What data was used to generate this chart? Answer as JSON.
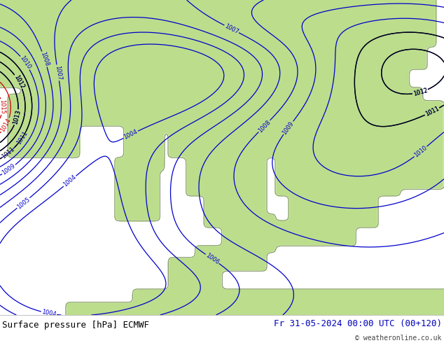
{
  "title_left": "Surface pressure [hPa] ECMWF",
  "title_right": "Fr 31-05-2024 00:00 UTC (00+120)",
  "copyright": "© weatheronline.co.uk",
  "background_color": "#ffffff",
  "land_color_light": "#c8e6a0",
  "land_color_dark": "#a8d070",
  "sea_color": "#d0e8f8",
  "isobar_color_blue": "#0000cc",
  "isobar_color_black": "#000000",
  "isobar_color_red": "#cc0000",
  "font_size_title": 9,
  "font_size_labels": 6,
  "font_size_copyright": 7,
  "bottom_bar_color": "#ffffff",
  "border_color": "#000000"
}
